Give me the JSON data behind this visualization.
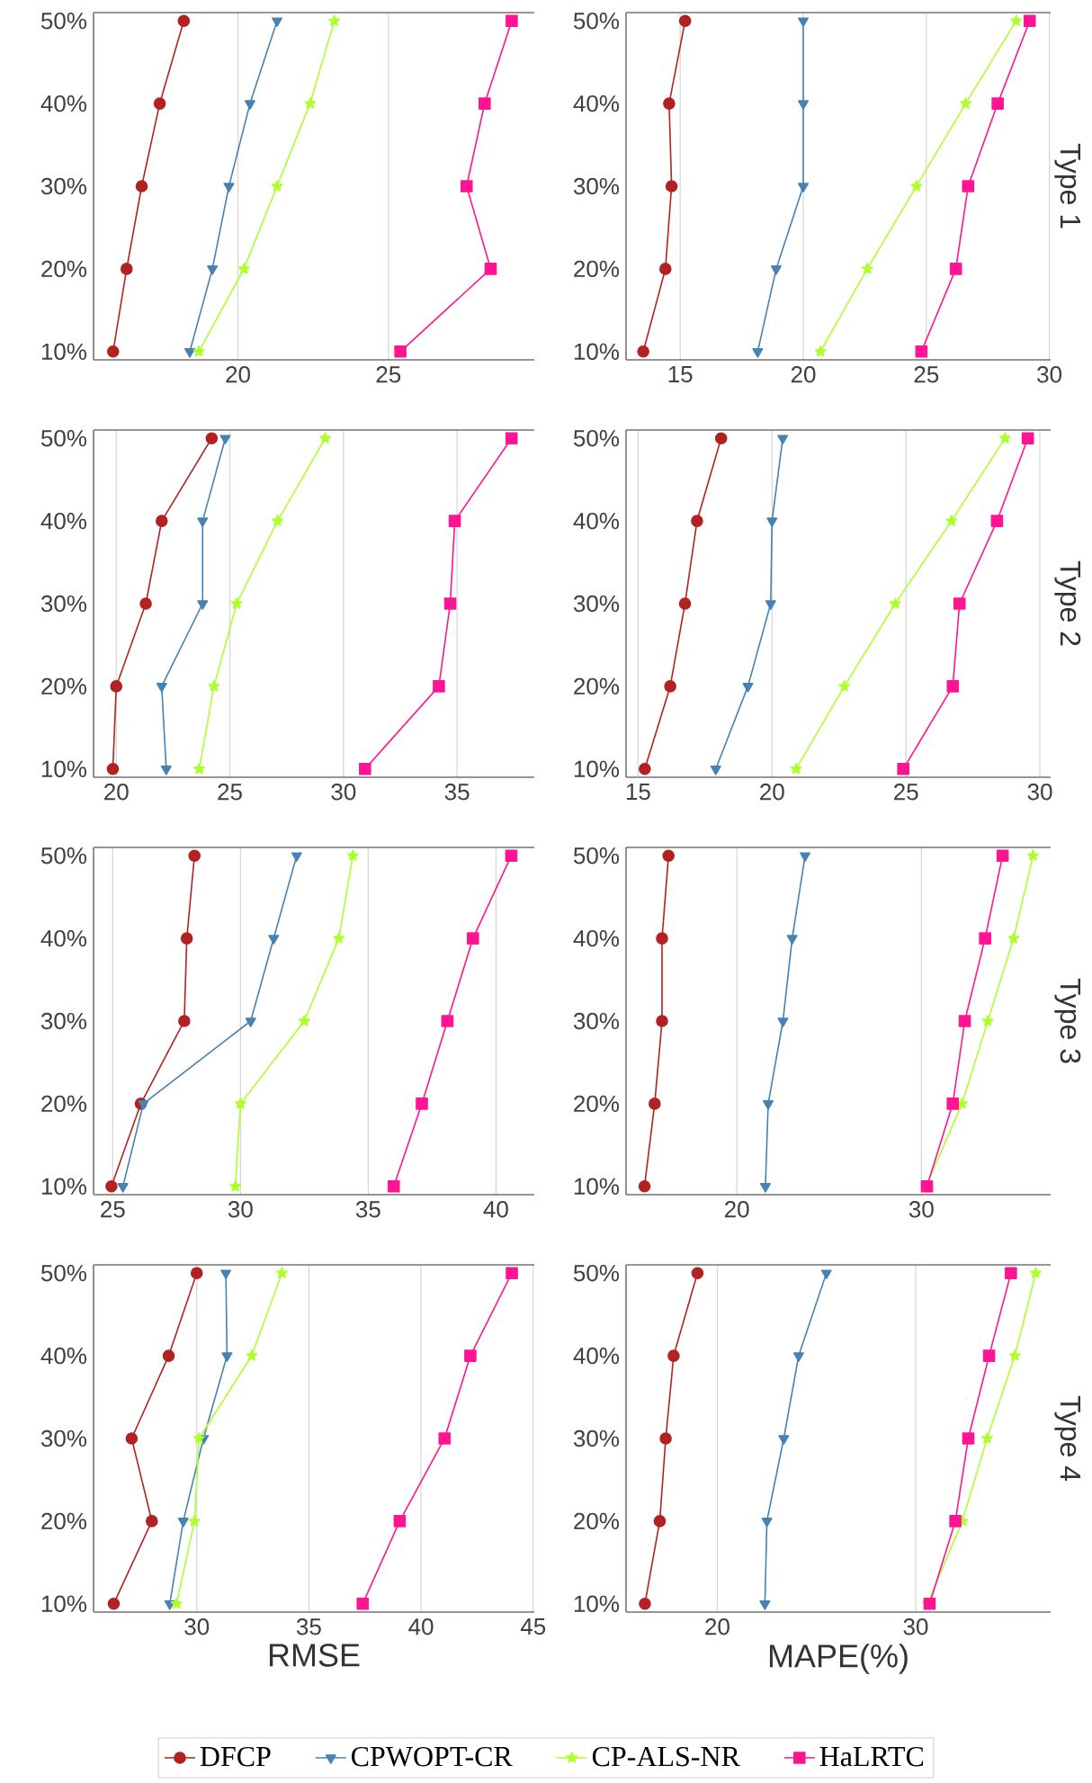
{
  "chart_data": [
    {
      "type": "line",
      "xlim": [
        15.2,
        29.85
      ],
      "xticks": [
        20,
        25
      ],
      "ylim": [
        9,
        51
      ],
      "yticks": [
        {
          "value": 10,
          "label": "10%"
        },
        {
          "value": 20,
          "label": "20%"
        },
        {
          "value": 30,
          "label": "30%"
        },
        {
          "value": 40,
          "label": "40%"
        },
        {
          "value": 50,
          "label": "50%"
        }
      ],
      "grid": "x",
      "series": [
        {
          "color": "#b22222",
          "marker": "circle",
          "x": [
            15.85,
            16.3,
            16.8,
            17.4,
            18.2
          ],
          "values": [
            10,
            20,
            30,
            40,
            50
          ]
        },
        {
          "color": "#4682b4",
          "marker": "triangle",
          "x": [
            18.4,
            19.15,
            19.7,
            20.4,
            21.3
          ],
          "values": [
            10,
            20,
            30,
            40,
            50
          ]
        },
        {
          "color": "#adff2f",
          "marker": "star",
          "x": [
            18.7,
            20.2,
            21.3,
            22.4,
            23.2
          ],
          "values": [
            10,
            20,
            30,
            40,
            50
          ]
        },
        {
          "color": "#ff1493",
          "marker": "square",
          "x": [
            25.4,
            28.4,
            27.6,
            28.2,
            29.1
          ],
          "values": [
            10,
            20,
            30,
            40,
            50
          ]
        }
      ]
    },
    {
      "type": "line",
      "y2label": "Type 1",
      "xlim": [
        12.8,
        30.05
      ],
      "xticks": [
        15,
        20,
        25,
        30
      ],
      "ylim": [
        9,
        51
      ],
      "yticks": [
        {
          "value": 10,
          "label": "10%"
        },
        {
          "value": 20,
          "label": "20%"
        },
        {
          "value": 30,
          "label": "30%"
        },
        {
          "value": 40,
          "label": "40%"
        },
        {
          "value": 50,
          "label": "50%"
        }
      ],
      "grid": "x",
      "series": [
        {
          "color": "#b22222",
          "marker": "circle",
          "x": [
            13.5,
            14.4,
            14.65,
            14.55,
            15.2
          ],
          "values": [
            10,
            20,
            30,
            40,
            50
          ]
        },
        {
          "color": "#4682b4",
          "marker": "triangle",
          "x": [
            18.15,
            18.9,
            20,
            20,
            20
          ],
          "values": [
            10,
            20,
            30,
            40,
            50
          ]
        },
        {
          "color": "#adff2f",
          "marker": "star",
          "x": [
            20.7,
            22.6,
            24.6,
            26.6,
            28.65
          ],
          "values": [
            10,
            20,
            30,
            40,
            50
          ]
        },
        {
          "color": "#ff1493",
          "marker": "square",
          "x": [
            24.8,
            26.2,
            26.7,
            27.9,
            29.2
          ],
          "values": [
            10,
            20,
            30,
            40,
            50
          ]
        }
      ]
    },
    {
      "type": "line",
      "xlim": [
        19,
        38.4
      ],
      "xticks": [
        20,
        25,
        30,
        35
      ],
      "ylim": [
        9,
        51
      ],
      "yticks": [
        {
          "value": 10,
          "label": "10%"
        },
        {
          "value": 20,
          "label": "20%"
        },
        {
          "value": 30,
          "label": "30%"
        },
        {
          "value": 40,
          "label": "40%"
        },
        {
          "value": 50,
          "label": "50%"
        }
      ],
      "grid": "x",
      "series": [
        {
          "color": "#b22222",
          "marker": "circle",
          "x": [
            19.85,
            20,
            21.3,
            22,
            24.2
          ],
          "values": [
            10,
            20,
            30,
            40,
            50
          ]
        },
        {
          "color": "#4682b4",
          "marker": "triangle",
          "x": [
            22.2,
            22,
            23.8,
            23.8,
            24.8
          ],
          "values": [
            10,
            20,
            30,
            40,
            50
          ]
        },
        {
          "color": "#adff2f",
          "marker": "star",
          "x": [
            23.65,
            24.3,
            25.3,
            27.1,
            29.2
          ],
          "values": [
            10,
            20,
            30,
            40,
            50
          ]
        },
        {
          "color": "#ff1493",
          "marker": "square",
          "x": [
            30.95,
            34.2,
            34.7,
            34.9,
            37.4
          ],
          "values": [
            10,
            20,
            30,
            40,
            50
          ]
        }
      ]
    },
    {
      "type": "line",
      "y2label": "Type 2",
      "xlim": [
        14.55,
        30.4
      ],
      "xticks": [
        15,
        20,
        25,
        30
      ],
      "ylim": [
        9,
        51
      ],
      "yticks": [
        {
          "value": 10,
          "label": "10%"
        },
        {
          "value": 20,
          "label": "20%"
        },
        {
          "value": 30,
          "label": "30%"
        },
        {
          "value": 40,
          "label": "40%"
        },
        {
          "value": 50,
          "label": "50%"
        }
      ],
      "grid": "x",
      "series": [
        {
          "color": "#b22222",
          "marker": "circle",
          "x": [
            15.25,
            16.2,
            16.75,
            17.2,
            18.1
          ],
          "values": [
            10,
            20,
            30,
            40,
            50
          ]
        },
        {
          "color": "#4682b4",
          "marker": "triangle",
          "x": [
            17.9,
            19.1,
            19.95,
            20,
            20.4
          ],
          "values": [
            10,
            20,
            30,
            40,
            50
          ]
        },
        {
          "color": "#adff2f",
          "marker": "star",
          "x": [
            20.9,
            22.7,
            24.6,
            26.7,
            28.7
          ],
          "values": [
            10,
            20,
            30,
            40,
            50
          ]
        },
        {
          "color": "#ff1493",
          "marker": "square",
          "x": [
            24.9,
            26.75,
            27,
            28.4,
            29.55
          ],
          "values": [
            10,
            20,
            30,
            40,
            50
          ]
        }
      ]
    },
    {
      "type": "line",
      "xlim": [
        24.25,
        41.5
      ],
      "xticks": [
        25,
        30,
        35,
        40
      ],
      "ylim": [
        9,
        51
      ],
      "yticks": [
        {
          "value": 10,
          "label": "10%"
        },
        {
          "value": 20,
          "label": "20%"
        },
        {
          "value": 30,
          "label": "30%"
        },
        {
          "value": 40,
          "label": "40%"
        },
        {
          "value": 50,
          "label": "50%"
        }
      ],
      "grid": "x",
      "series": [
        {
          "color": "#b22222",
          "marker": "circle",
          "x": [
            24.95,
            26.1,
            27.8,
            27.9,
            28.2
          ],
          "values": [
            10,
            20,
            30,
            40,
            50
          ]
        },
        {
          "color": "#4682b4",
          "marker": "triangle",
          "x": [
            25.4,
            26.2,
            30.4,
            31.3,
            32.2
          ],
          "values": [
            10,
            20,
            30,
            40,
            50
          ]
        },
        {
          "color": "#adff2f",
          "marker": "star",
          "x": [
            29.8,
            30,
            32.5,
            33.85,
            34.4
          ],
          "values": [
            10,
            20,
            30,
            40,
            50
          ]
        },
        {
          "color": "#ff1493",
          "marker": "square",
          "x": [
            36,
            37.1,
            38.1,
            39.1,
            40.6
          ],
          "values": [
            10,
            20,
            30,
            40,
            50
          ]
        }
      ]
    },
    {
      "type": "line",
      "y2label": "Type 3",
      "xlim": [
        14,
        37
      ],
      "xticks": [
        20,
        30
      ],
      "ylim": [
        9,
        51
      ],
      "yticks": [
        {
          "value": 10,
          "label": "10%"
        },
        {
          "value": 20,
          "label": "20%"
        },
        {
          "value": 30,
          "label": "30%"
        },
        {
          "value": 40,
          "label": "40%"
        },
        {
          "value": 50,
          "label": "50%"
        }
      ],
      "grid": "x",
      "series": [
        {
          "color": "#b22222",
          "marker": "circle",
          "x": [
            15,
            15.55,
            15.95,
            15.95,
            16.3
          ],
          "values": [
            10,
            20,
            30,
            40,
            50
          ]
        },
        {
          "color": "#4682b4",
          "marker": "triangle",
          "x": [
            21.55,
            21.7,
            22.5,
            23,
            23.7
          ],
          "values": [
            10,
            20,
            30,
            40,
            50
          ]
        },
        {
          "color": "#adff2f",
          "marker": "star",
          "x": [
            30.25,
            32.2,
            33.6,
            35,
            36.05
          ],
          "values": [
            10,
            20,
            30,
            40,
            50
          ]
        },
        {
          "color": "#ff1493",
          "marker": "square",
          "x": [
            30.3,
            31.7,
            32.35,
            33.45,
            34.4
          ],
          "values": [
            10,
            20,
            30,
            40,
            50
          ]
        }
      ]
    },
    {
      "type": "line",
      "xlabel": "RMSE",
      "xlim": [
        25.4,
        45.05
      ],
      "xticks": [
        30,
        35,
        40,
        45
      ],
      "ylim": [
        9,
        51
      ],
      "yticks": [
        {
          "value": 10,
          "label": "10%"
        },
        {
          "value": 20,
          "label": "20%"
        },
        {
          "value": 30,
          "label": "30%"
        },
        {
          "value": 40,
          "label": "40%"
        },
        {
          "value": 50,
          "label": "50%"
        }
      ],
      "grid": "x",
      "series": [
        {
          "color": "#b22222",
          "marker": "circle",
          "x": [
            26.3,
            28,
            27.1,
            28.75,
            30
          ],
          "values": [
            10,
            20,
            30,
            40,
            50
          ]
        },
        {
          "color": "#4682b4",
          "marker": "triangle",
          "x": [
            28.8,
            29.4,
            30.3,
            31.35,
            31.3
          ],
          "values": [
            10,
            20,
            30,
            40,
            50
          ]
        },
        {
          "color": "#adff2f",
          "marker": "star",
          "x": [
            29.1,
            29.9,
            30.1,
            32.45,
            33.8
          ],
          "values": [
            10,
            20,
            30,
            40,
            50
          ]
        },
        {
          "color": "#ff1493",
          "marker": "square",
          "x": [
            37.4,
            39.05,
            41.05,
            42.2,
            44.05
          ],
          "values": [
            10,
            20,
            30,
            40,
            50
          ]
        }
      ]
    },
    {
      "type": "line",
      "xlabel": "MAPE(%)",
      "y2label": "Type 4",
      "xlim": [
        15.4,
        36.8
      ],
      "xticks": [
        20,
        30
      ],
      "ylim": [
        9,
        51
      ],
      "yticks": [
        {
          "value": 10,
          "label": "10%"
        },
        {
          "value": 20,
          "label": "20%"
        },
        {
          "value": 30,
          "label": "30%"
        },
        {
          "value": 40,
          "label": "40%"
        },
        {
          "value": 50,
          "label": "50%"
        }
      ],
      "grid": "x",
      "legend": "bottom",
      "series": [
        {
          "name": "DFCP",
          "color": "#b22222",
          "marker": "circle",
          "x": [
            16.35,
            17.1,
            17.4,
            17.8,
            19
          ],
          "values": [
            10,
            20,
            30,
            40,
            50
          ]
        },
        {
          "name": "CPWOPT-CR",
          "color": "#4682b4",
          "marker": "triangle",
          "x": [
            22.4,
            22.5,
            23.35,
            24.1,
            25.5
          ],
          "values": [
            10,
            20,
            30,
            40,
            50
          ]
        },
        {
          "name": "CP-ALS-NR",
          "color": "#adff2f",
          "marker": "star",
          "x": [
            30.6,
            32.35,
            33.6,
            35,
            36.05
          ],
          "values": [
            10,
            20,
            30,
            40,
            50
          ]
        },
        {
          "name": "HaLRTC",
          "color": "#ff1493",
          "marker": "square",
          "x": [
            30.7,
            32,
            32.65,
            33.7,
            34.8
          ],
          "values": [
            10,
            20,
            30,
            40,
            50
          ]
        }
      ]
    }
  ]
}
